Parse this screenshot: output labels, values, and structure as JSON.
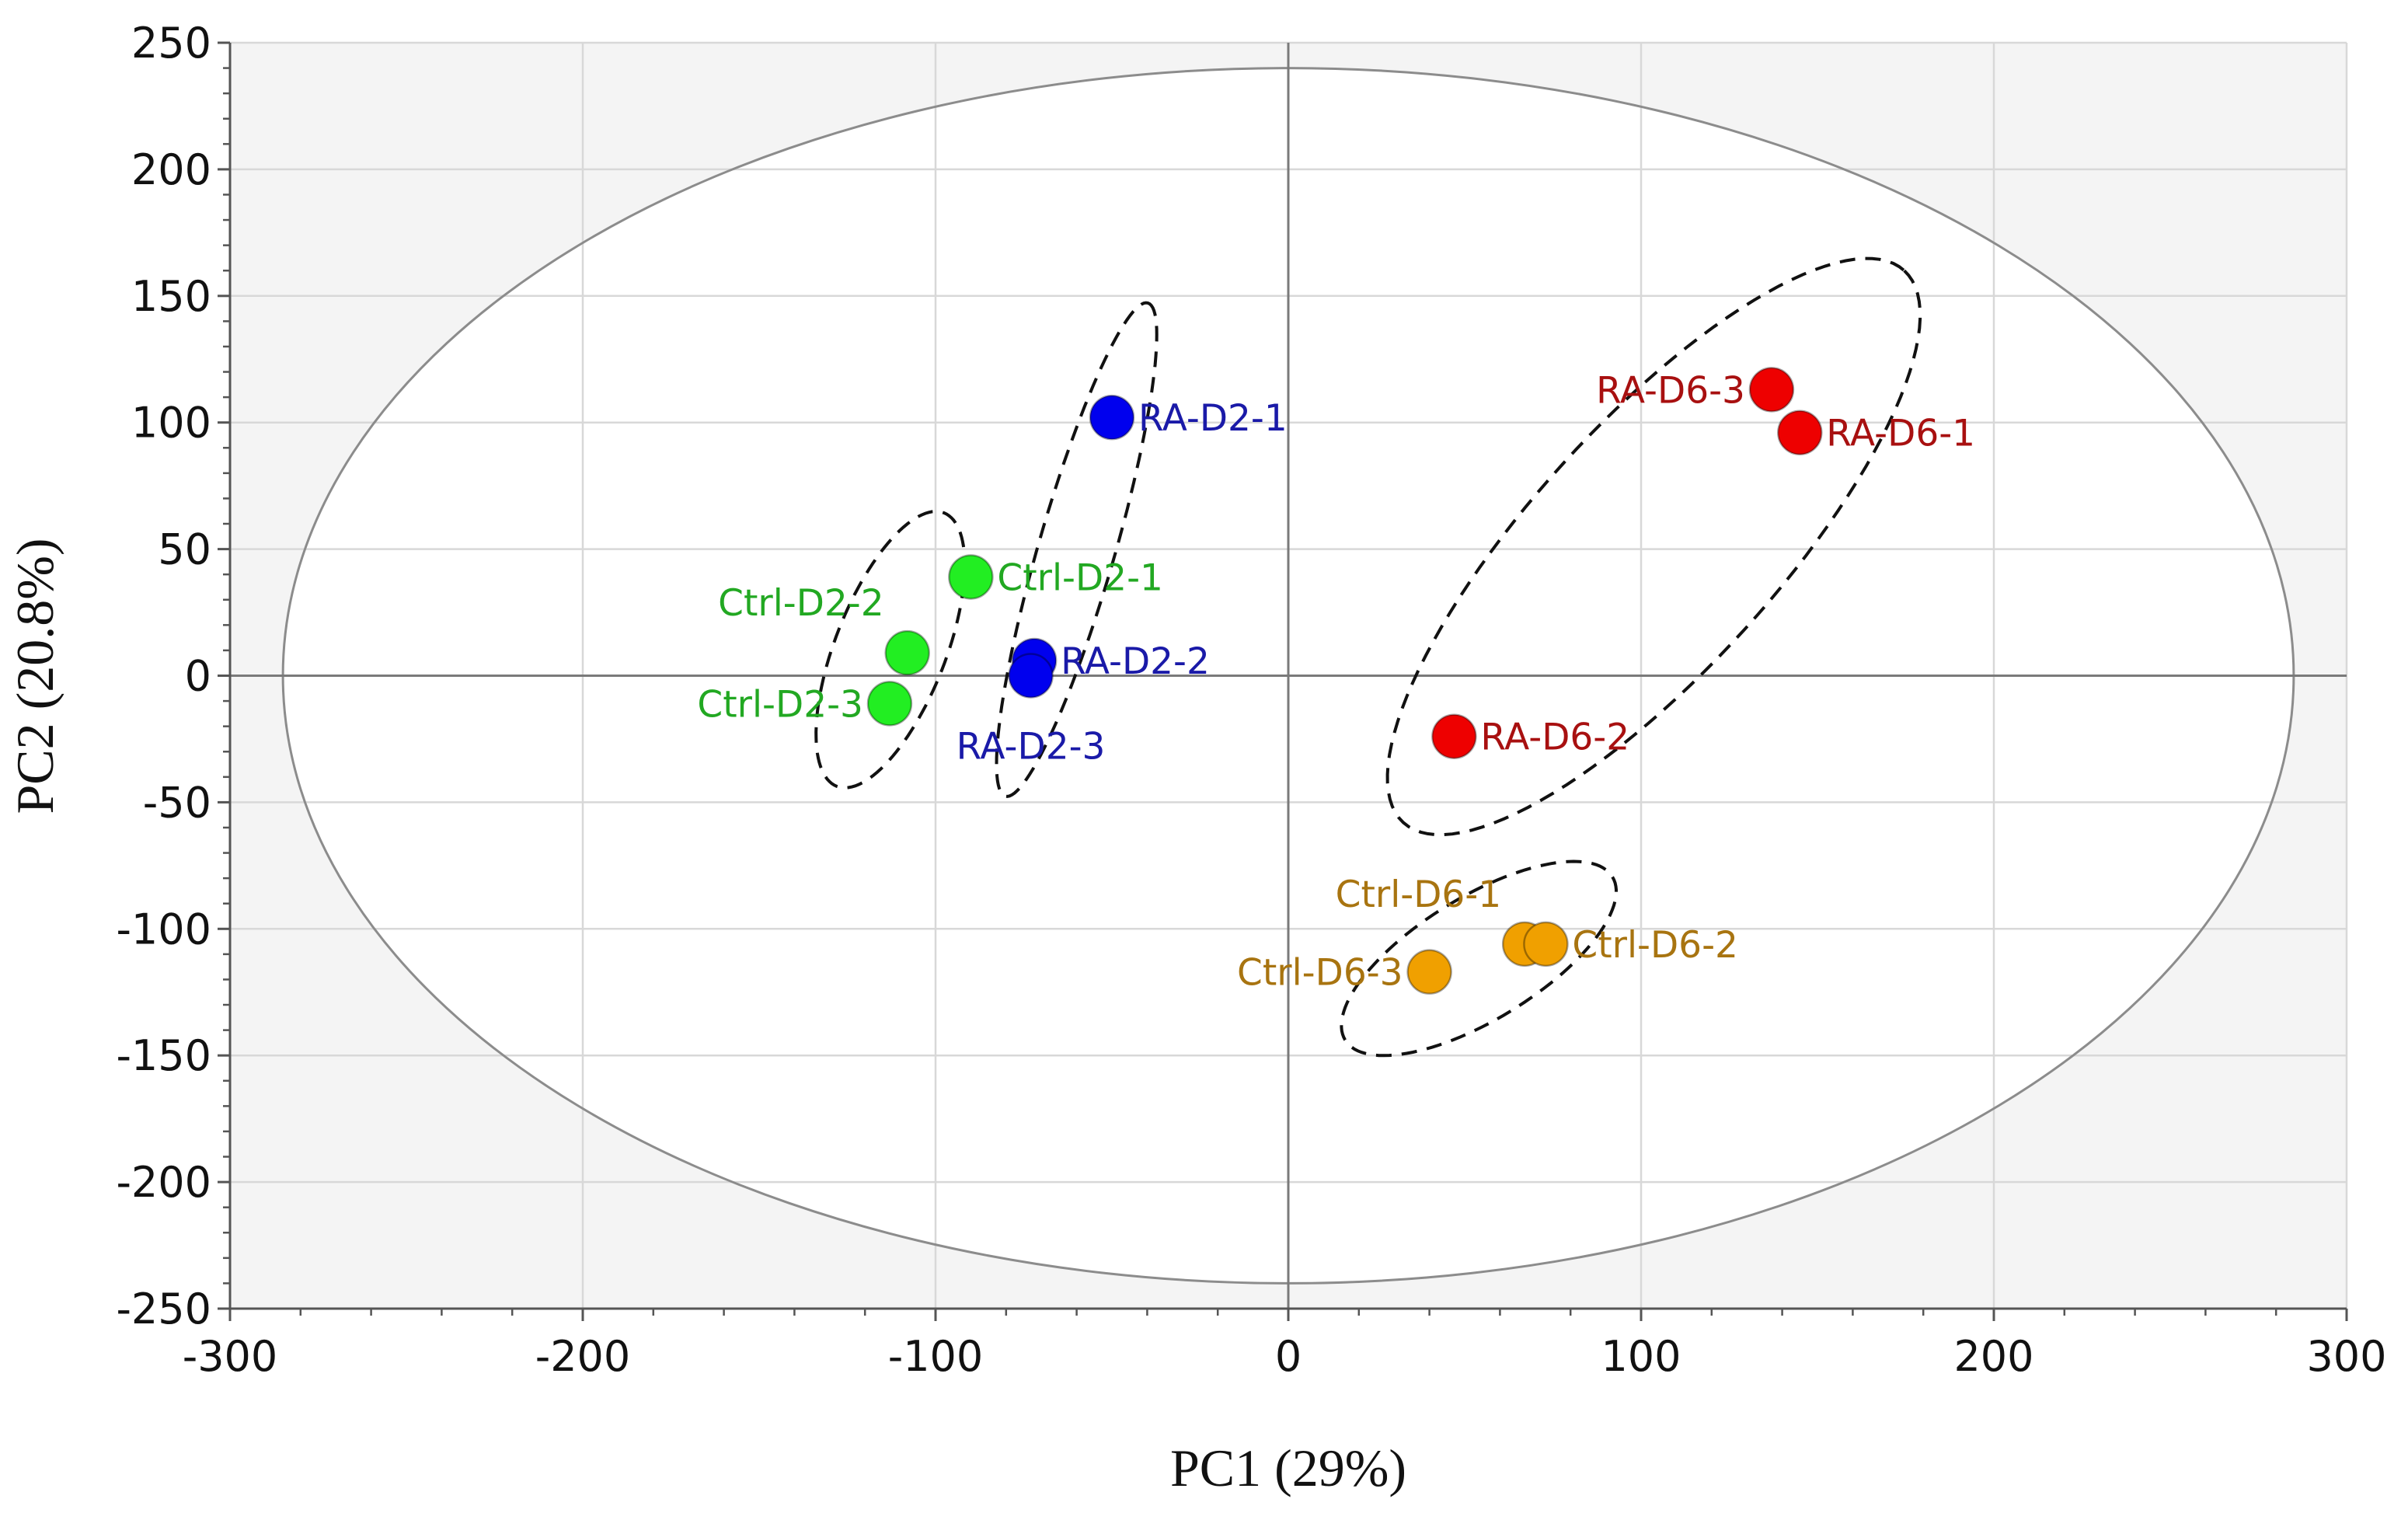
{
  "chart_data": {
    "type": "scatter",
    "title": "",
    "xlabel": "PC1 (29%)",
    "ylabel": "PC2 (20.8%)",
    "xlim": [
      -300,
      300
    ],
    "ylim": [
      -250,
      250
    ],
    "xticks": [
      -300,
      -200,
      -100,
      0,
      100,
      200,
      300
    ],
    "yticks": [
      250,
      200,
      150,
      100,
      50,
      0,
      -50,
      -100,
      -150,
      -200,
      -250
    ],
    "x_minor_step": 20,
    "y_minor_step": 10,
    "grid": true,
    "confidence_ellipse": {
      "center": [
        0,
        0
      ],
      "semi_axes": [
        285,
        240
      ]
    },
    "groups": [
      {
        "name": "Ctrl-D2",
        "color": "#22ee22",
        "label_color": "#22a822",
        "ellipse": {
          "center": [
            -112.8,
            10.3
          ],
          "major": [
            15.2,
            54
          ],
          "minor": [
            14.6,
            -8
          ]
        },
        "points": [
          {
            "label": "Ctrl-D2-1",
            "x": -90,
            "y": 39,
            "anchor": "right"
          },
          {
            "label": "Ctrl-D2-2",
            "x": -108,
            "y": 9,
            "anchor": "above-left"
          },
          {
            "label": "Ctrl-D2-3",
            "x": -113,
            "y": -11,
            "anchor": "left"
          }
        ]
      },
      {
        "name": "RA-D2",
        "color": "#0000ee",
        "label_color": "#1a1aa8",
        "ellipse": {
          "center": [
            -60,
            49.8
          ],
          "major": [
            20.2,
            97.4
          ],
          "minor": [
            10.4,
            -4.2
          ]
        },
        "points": [
          {
            "label": "RA-D2-1",
            "x": -50,
            "y": 102,
            "anchor": "right"
          },
          {
            "label": "RA-D2-2",
            "x": -72,
            "y": 6,
            "anchor": "right"
          },
          {
            "label": "RA-D2-3",
            "x": -73,
            "y": 0,
            "anchor": "below"
          }
        ]
      },
      {
        "name": "RA-D6",
        "color": "#ee0000",
        "label_color": "#a81010",
        "ellipse": {
          "center": [
            103.6,
            51
          ],
          "major": [
            71,
            109
          ],
          "minor": [
            25.7,
            -32.8
          ]
        },
        "points": [
          {
            "label": "RA-D6-3",
            "x": 137,
            "y": 113,
            "anchor": "left"
          },
          {
            "label": "RA-D6-1",
            "x": 145,
            "y": 96,
            "anchor": "right"
          },
          {
            "label": "RA-D6-2",
            "x": 47,
            "y": -24,
            "anchor": "right"
          }
        ]
      },
      {
        "name": "Ctrl-D6",
        "color": "#f0a000",
        "label_color": "#a87410",
        "ellipse": {
          "center": [
            54,
            -111.7
          ],
          "major": [
            37.9,
            32.2
          ],
          "minor": [
            9,
            -20.8
          ]
        },
        "points": [
          {
            "label": "Ctrl-D6-1",
            "x": 67,
            "y": -106,
            "anchor": "above-left"
          },
          {
            "label": "Ctrl-D6-2",
            "x": 73,
            "y": -106,
            "anchor": "right"
          },
          {
            "label": "Ctrl-D6-3",
            "x": 40,
            "y": -117,
            "anchor": "left"
          }
        ]
      }
    ]
  }
}
